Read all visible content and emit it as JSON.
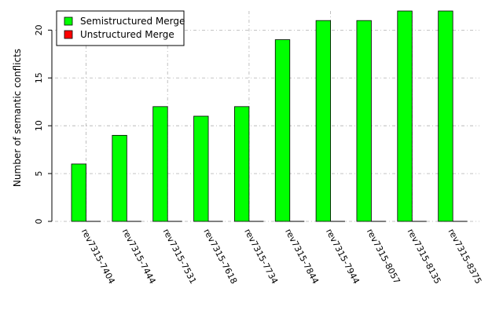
{
  "chart_data": {
    "type": "bar",
    "title": "",
    "xlabel": "",
    "ylabel": "Number of semantic conflicts",
    "categories": [
      "rev7315-7404",
      "rev7315-7444",
      "rev7315-7531",
      "rev7315-7618",
      "rev7315-7734",
      "rev7315-7844",
      "rev7315-7944",
      "rev7315-8057",
      "rev7315-8135",
      "rev7315-8375"
    ],
    "series": [
      {
        "name": "Semistructured Merge",
        "color": "#00ff00",
        "values": [
          6,
          9,
          12,
          11,
          12,
          19,
          21,
          21,
          22,
          22
        ]
      },
      {
        "name": "Unstructured Merge",
        "color": "#ff0000",
        "values": [
          0,
          0,
          0,
          0,
          0,
          0,
          0,
          0,
          0,
          0
        ]
      }
    ],
    "ylim": [
      0,
      22
    ],
    "yticks": [
      0,
      5,
      10,
      15,
      20
    ],
    "grid": true,
    "legend_position": "top-left"
  }
}
